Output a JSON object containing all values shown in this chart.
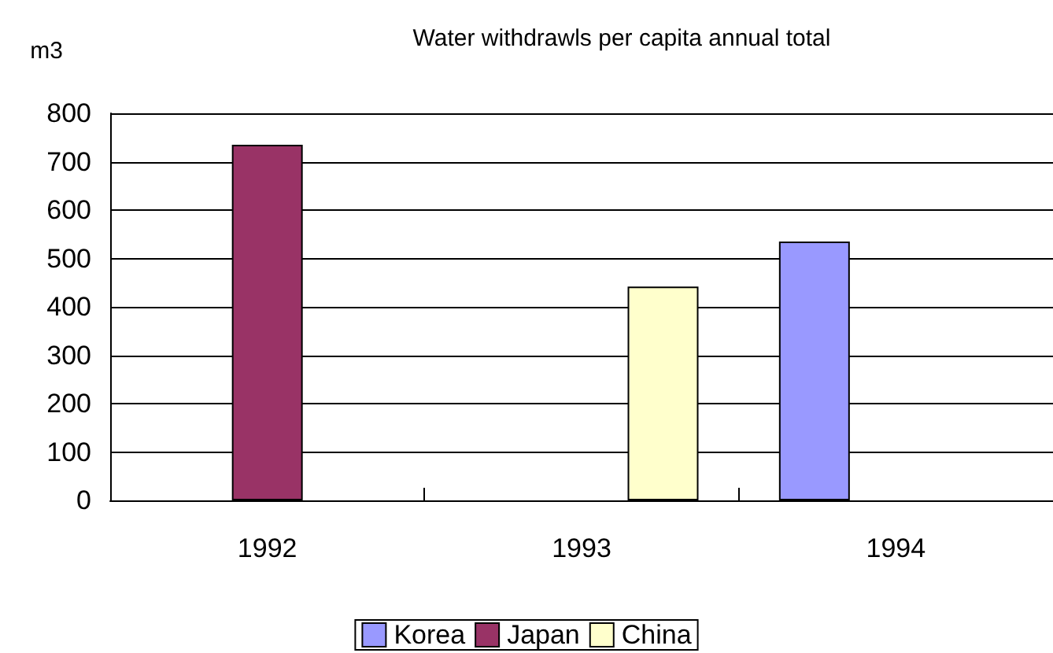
{
  "chart_data": {
    "type": "bar",
    "title": "Water withdrawls per capita annual total",
    "ylabel": "m3",
    "categories": [
      "1992",
      "1993",
      "1994"
    ],
    "series": [
      {
        "name": "Korea",
        "color": "#9999ff",
        "values": [
          null,
          null,
          535
        ]
      },
      {
        "name": "Japan",
        "color": "#993366",
        "values": [
          735,
          null,
          null
        ]
      },
      {
        "name": "China",
        "color": "#ffffcc",
        "values": [
          null,
          442,
          null
        ]
      }
    ],
    "ylim": [
      0,
      800
    ],
    "yticks": [
      0,
      100,
      200,
      300,
      400,
      500,
      600,
      700,
      800
    ],
    "grid": "y",
    "legend": "bottom"
  }
}
